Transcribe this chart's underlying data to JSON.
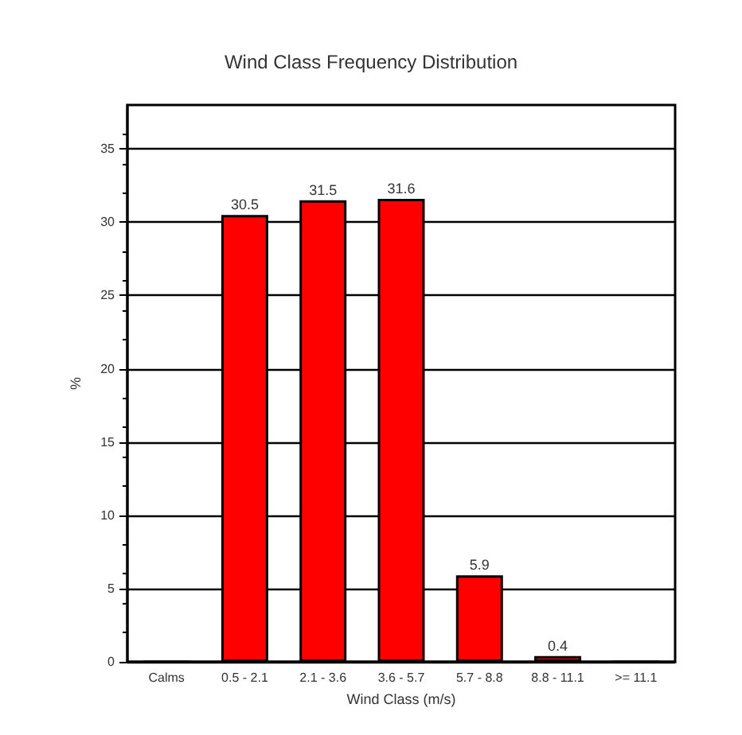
{
  "chart_data": {
    "type": "bar",
    "title": "Wind Class Frequency Distribution",
    "xlabel": "Wind Class (m/s)",
    "ylabel": "%",
    "categories": [
      "Calms",
      "0.5 - 2.1",
      "2.1 - 3.6",
      "3.6 - 5.7",
      "5.7 - 8.8",
      "8.8 - 11.1",
      ">= 11.1"
    ],
    "values": [
      0,
      30.5,
      31.5,
      31.6,
      5.9,
      0.4,
      0
    ],
    "value_labels": [
      null,
      "30.5",
      "31.5",
      "31.6",
      "5.9",
      "0.4",
      null
    ],
    "color": "#ff0000",
    "ylim": [
      0,
      38
    ],
    "yticks": [
      0,
      5,
      10,
      15,
      20,
      25,
      30,
      35
    ],
    "grid": "y"
  }
}
